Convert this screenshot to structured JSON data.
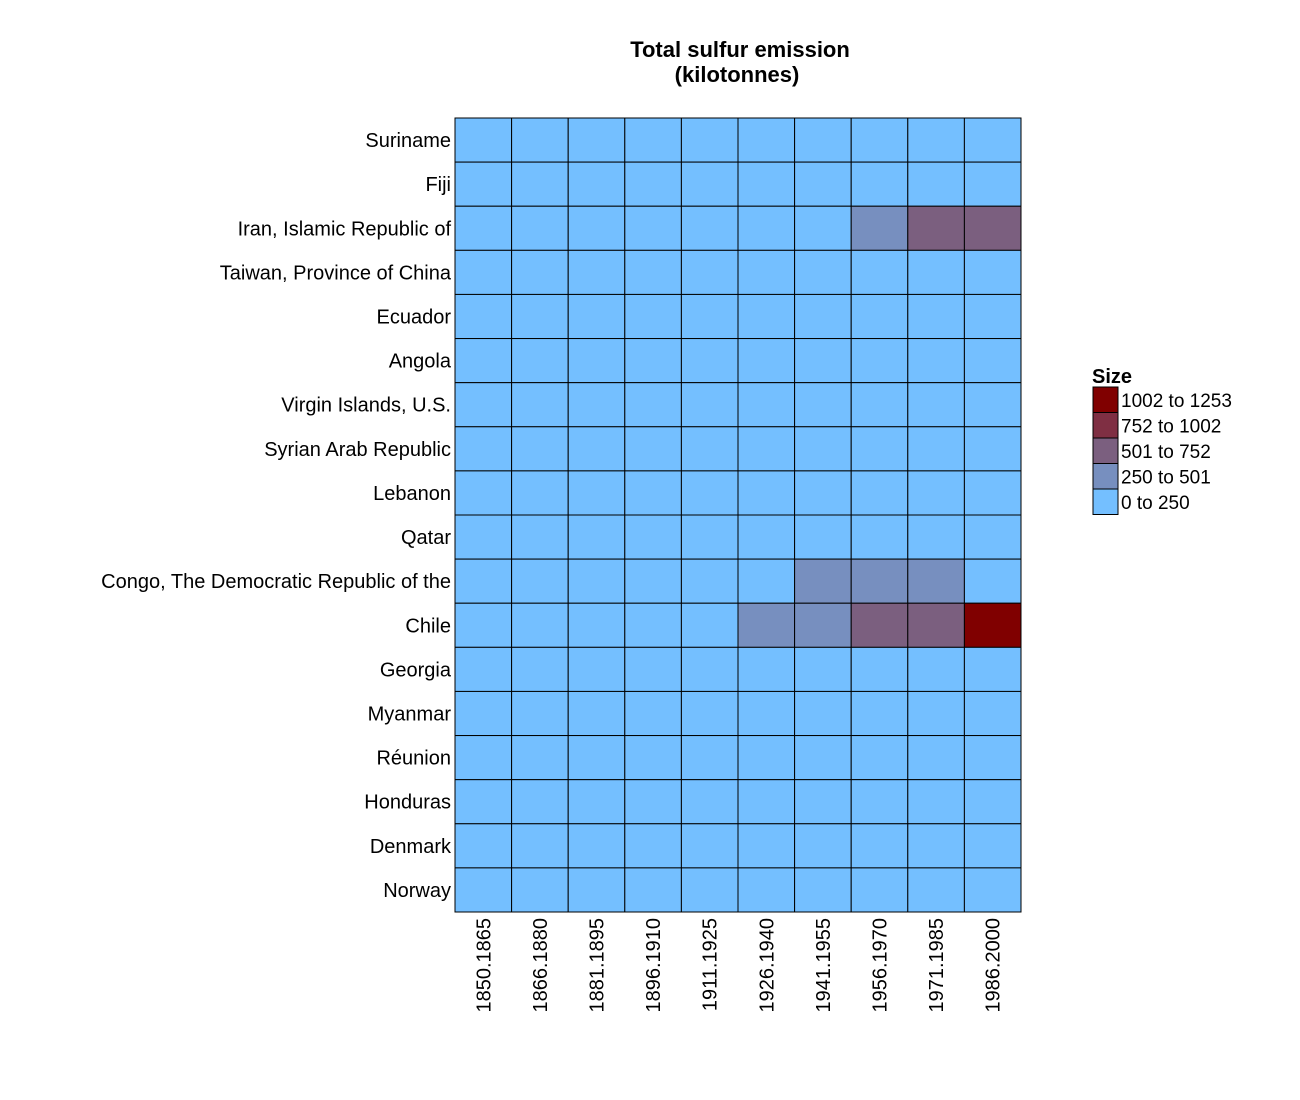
{
  "chart_data": {
    "type": "heatmap",
    "title": "Total sulfur emission",
    "subtitle": "(kilotonnes)",
    "columns": [
      "1850.1865",
      "1866.1880",
      "1881.1895",
      "1896.1910",
      "1911.1925",
      "1926.1940",
      "1941.1955",
      "1956.1970",
      "1971.1985",
      "1986.2000"
    ],
    "rows": [
      "Suriname",
      "Fiji",
      "Iran, Islamic Republic of",
      "Taiwan, Province of China",
      "Ecuador",
      "Angola",
      "Virgin Islands, U.S.",
      "Syrian Arab Republic",
      "Lebanon",
      "Qatar",
      "Congo, The Democratic Republic of the",
      "Chile",
      "Georgia",
      "Myanmar",
      "Réunion",
      "Honduras",
      "Denmark",
      "Norway"
    ],
    "value_bins": [
      [
        0,
        0,
        0,
        0,
        0,
        0,
        0,
        0,
        0,
        0
      ],
      [
        0,
        0,
        0,
        0,
        0,
        0,
        0,
        0,
        0,
        0
      ],
      [
        0,
        0,
        0,
        0,
        0,
        0,
        0,
        1,
        2,
        2
      ],
      [
        0,
        0,
        0,
        0,
        0,
        0,
        0,
        0,
        0,
        0
      ],
      [
        0,
        0,
        0,
        0,
        0,
        0,
        0,
        0,
        0,
        0
      ],
      [
        0,
        0,
        0,
        0,
        0,
        0,
        0,
        0,
        0,
        0
      ],
      [
        0,
        0,
        0,
        0,
        0,
        0,
        0,
        0,
        0,
        0
      ],
      [
        0,
        0,
        0,
        0,
        0,
        0,
        0,
        0,
        0,
        0
      ],
      [
        0,
        0,
        0,
        0,
        0,
        0,
        0,
        0,
        0,
        0
      ],
      [
        0,
        0,
        0,
        0,
        0,
        0,
        0,
        0,
        0,
        0
      ],
      [
        0,
        0,
        0,
        0,
        0,
        0,
        1,
        1,
        1,
        0
      ],
      [
        0,
        0,
        0,
        0,
        0,
        1,
        1,
        2,
        2,
        4
      ],
      [
        0,
        0,
        0,
        0,
        0,
        0,
        0,
        0,
        0,
        0
      ],
      [
        0,
        0,
        0,
        0,
        0,
        0,
        0,
        0,
        0,
        0
      ],
      [
        0,
        0,
        0,
        0,
        0,
        0,
        0,
        0,
        0,
        0
      ],
      [
        0,
        0,
        0,
        0,
        0,
        0,
        0,
        0,
        0,
        0
      ],
      [
        0,
        0,
        0,
        0,
        0,
        0,
        0,
        0,
        0,
        0
      ],
      [
        0,
        0,
        0,
        0,
        0,
        0,
        0,
        0,
        0,
        0
      ]
    ],
    "legend": {
      "title": "Size",
      "placement": "right",
      "bins": [
        {
          "label": "1002 to 1253",
          "color": "#800000"
        },
        {
          "label": "752 to 1002",
          "color": "#7f2f43"
        },
        {
          "label": "501 to 752",
          "color": "#7b5f7f"
        },
        {
          "label": "250 to 501",
          "color": "#778fbf"
        },
        {
          "label": "0 to 250",
          "color": "#74bfff"
        }
      ],
      "bin_order_for_values": [
        "0 to 250",
        "250 to 501",
        "501 to 752",
        "752 to 1002",
        "1002 to 1253"
      ]
    }
  }
}
